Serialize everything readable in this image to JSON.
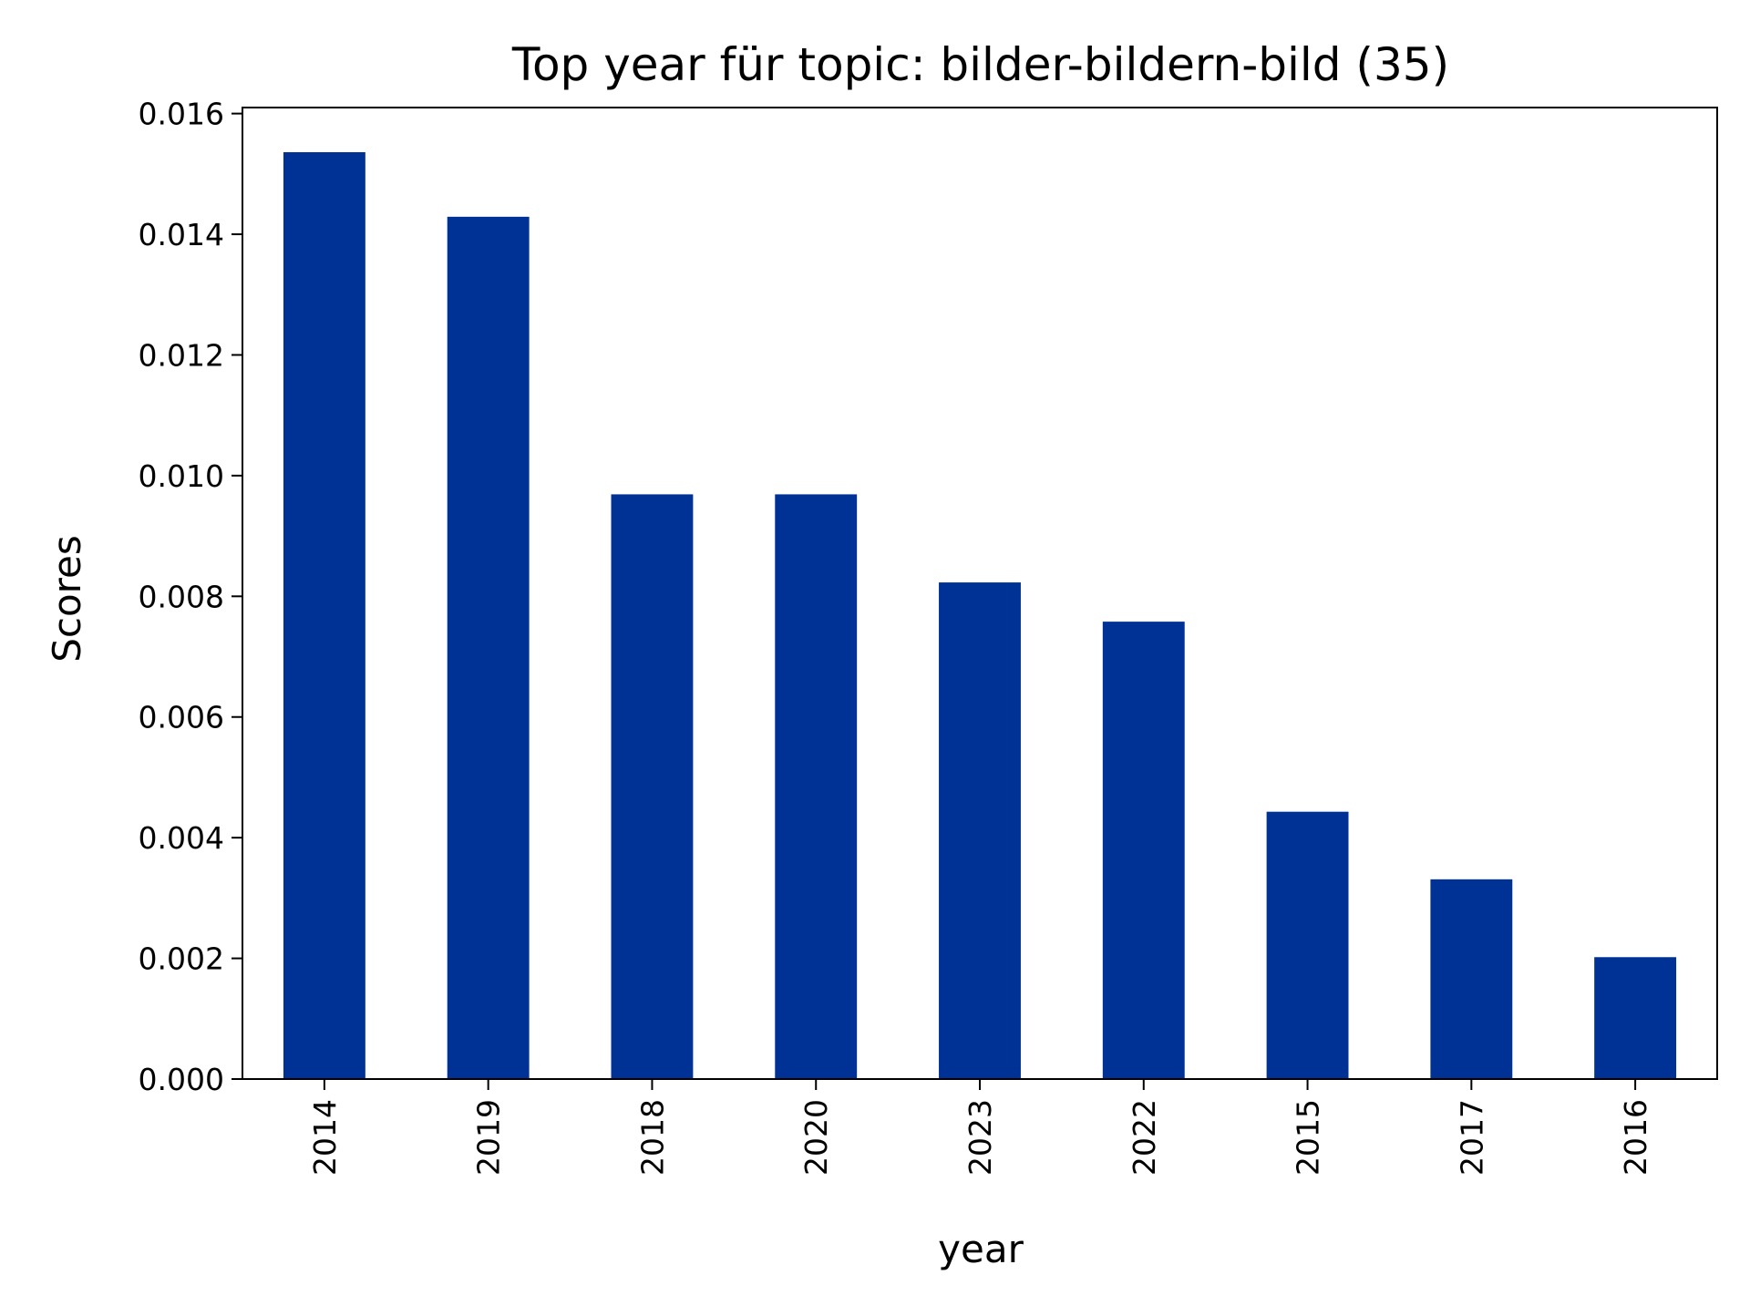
{
  "chart_data": {
    "type": "bar",
    "title": "Top year für topic: bilder-bildern-bild (35)",
    "xlabel": "year",
    "ylabel": "Scores",
    "categories": [
      "2014",
      "2019",
      "2018",
      "2020",
      "2023",
      "2022",
      "2015",
      "2017",
      "2016"
    ],
    "values": [
      0.01536,
      0.01429,
      0.00969,
      0.00969,
      0.00823,
      0.00758,
      0.00443,
      0.00331,
      0.00202
    ],
    "ylim": [
      0,
      0.0161
    ],
    "yticks": [
      "0.000",
      "0.002",
      "0.004",
      "0.006",
      "0.008",
      "0.010",
      "0.012",
      "0.014",
      "0.016"
    ],
    "grid": false,
    "legend": "none",
    "bar_color": "#003296"
  }
}
